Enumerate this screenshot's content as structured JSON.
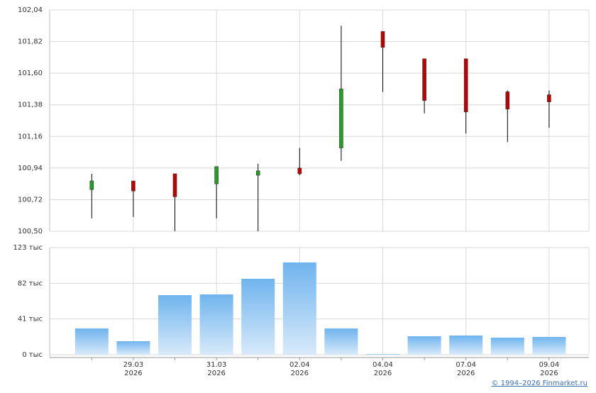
{
  "chart_data": {
    "type": "candlestick",
    "categories": [
      null,
      "29.03",
      null,
      "31.03",
      null,
      "02.04",
      null,
      "04.04",
      null,
      "07.04",
      null,
      "09.04"
    ],
    "category_years": [
      null,
      "2026",
      null,
      "2026",
      null,
      "2026",
      null,
      "2026",
      null,
      "2026",
      null,
      "2026"
    ],
    "open": [
      100.79,
      100.85,
      100.9,
      100.83,
      100.89,
      100.94,
      101.08,
      101.89,
      101.7,
      101.7,
      101.47,
      101.45
    ],
    "high": [
      100.9,
      100.85,
      100.9,
      100.95,
      100.97,
      101.08,
      101.93,
      101.89,
      101.7,
      101.7,
      101.48,
      101.48
    ],
    "low": [
      100.59,
      100.6,
      100.5,
      100.59,
      100.5,
      100.89,
      100.99,
      101.47,
      101.32,
      101.18,
      101.12,
      101.22
    ],
    "close": [
      100.85,
      100.78,
      100.74,
      100.95,
      100.92,
      100.9,
      101.49,
      101.78,
      101.41,
      101.33,
      101.35,
      101.4
    ],
    "up_color": "#22a022",
    "down_color": "#c00000",
    "ylim": [
      100.5,
      102.04
    ],
    "yticks": [
      {
        "value": 100.5,
        "label": "100,50"
      },
      {
        "value": 100.72,
        "label": "100,72"
      },
      {
        "value": 100.94,
        "label": "100,94"
      },
      {
        "value": 101.16,
        "label": "101,16"
      },
      {
        "value": 101.38,
        "label": "101,38"
      },
      {
        "value": 101.6,
        "label": "101,60"
      },
      {
        "value": 101.82,
        "label": "101,82"
      },
      {
        "value": 102.04,
        "label": "102,04"
      }
    ],
    "volume": [
      30100,
      15500,
      68400,
      69200,
      87200,
      105900,
      30100,
      800,
      21200,
      22000,
      19600,
      20400
    ],
    "volume_color": "#7dbdf0",
    "y2lim": [
      0,
      123000
    ],
    "y2ticks": [
      {
        "value": 0,
        "label": "0 тыс"
      },
      {
        "value": 41000,
        "label": "41 тыс"
      },
      {
        "value": 82000,
        "label": "82 тыс"
      },
      {
        "value": 123000,
        "label": "123 тыс"
      }
    ],
    "grid": true
  },
  "footer": {
    "copyright": "© 1994–2026 Finmarket.ru"
  }
}
